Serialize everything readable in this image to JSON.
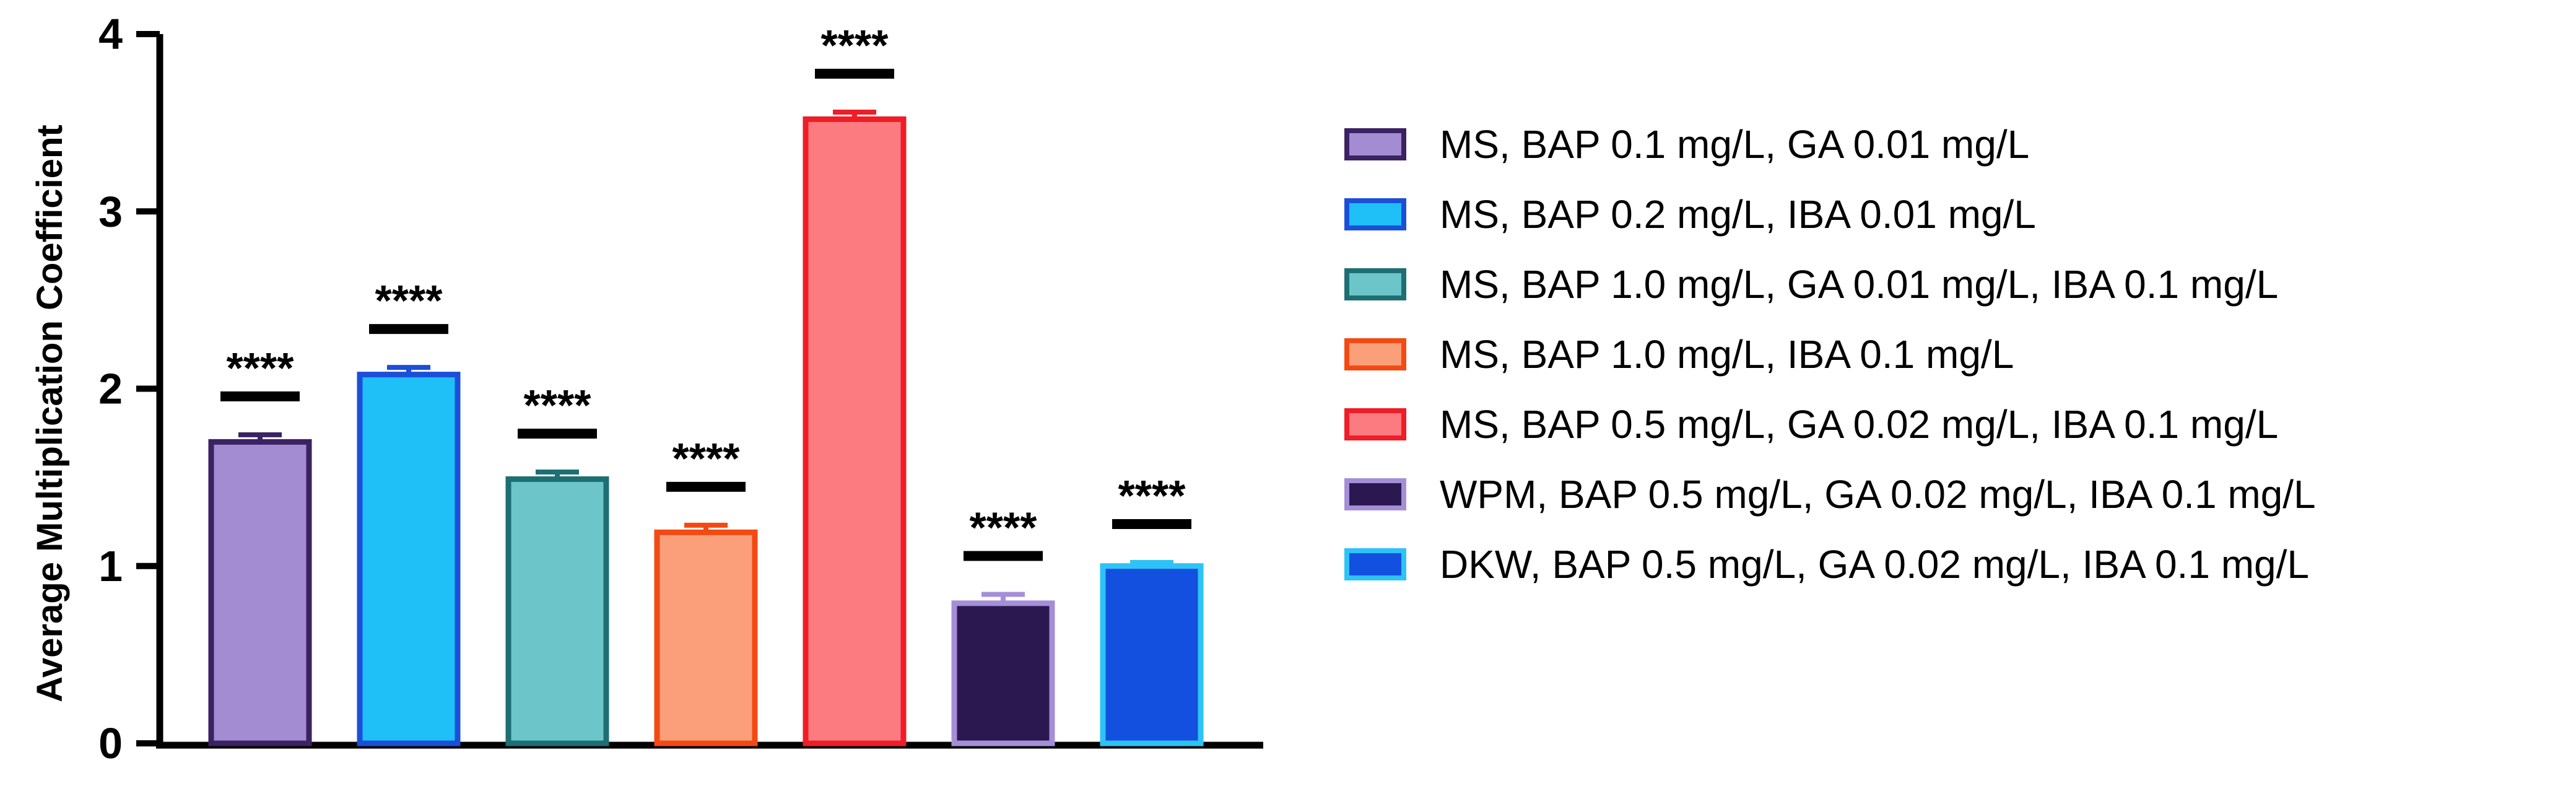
{
  "chart_data": {
    "type": "bar",
    "title": "",
    "xlabel": "",
    "ylabel": "Average Multiplication Coefficient",
    "ylim": [
      0,
      4
    ],
    "yticks": [
      0,
      1,
      2,
      3,
      4
    ],
    "grid": false,
    "legend_position": "right",
    "significance_label": "****",
    "categories": [
      "MS, BAP 0.1 mg/L, GA 0.01 mg/L",
      "MS, BAP 0.2 mg/L, IBA 0.01 mg/L",
      "MS, BAP 1.0 mg/L, GA 0.01 mg/L, IBA 0.1 mg/L",
      "MS, BAP 1.0 mg/L, IBA 0.1 mg/L",
      "MS, BAP 0.5 mg/L, GA 0.02 mg/L, IBA 0.1 mg/L",
      "WPM, BAP 0.5 mg/L, GA 0.02 mg/L, IBA 0.1 mg/L",
      "DKW, BAP 0.5 mg/L, GA 0.02 mg/L, IBA 0.1 mg/L"
    ],
    "values": [
      1.7,
      2.08,
      1.49,
      1.19,
      3.52,
      0.79,
      1.0
    ],
    "errors": [
      0.04,
      0.04,
      0.04,
      0.04,
      0.04,
      0.05,
      0.02
    ],
    "significance": [
      "****",
      "****",
      "****",
      "****",
      "****",
      "****",
      "****"
    ],
    "fill_colors": [
      "#a48cd3",
      "#1ec0f7",
      "#6cc6c9",
      "#fa9f7a",
      "#fc7b80",
      "#2b1850",
      "#1450e0"
    ],
    "edge_colors": [
      "#3b2262",
      "#1b4fd9",
      "#1d6f73",
      "#f24a12",
      "#ee1d26",
      "#a58ed8",
      "#2dc3f6"
    ]
  }
}
